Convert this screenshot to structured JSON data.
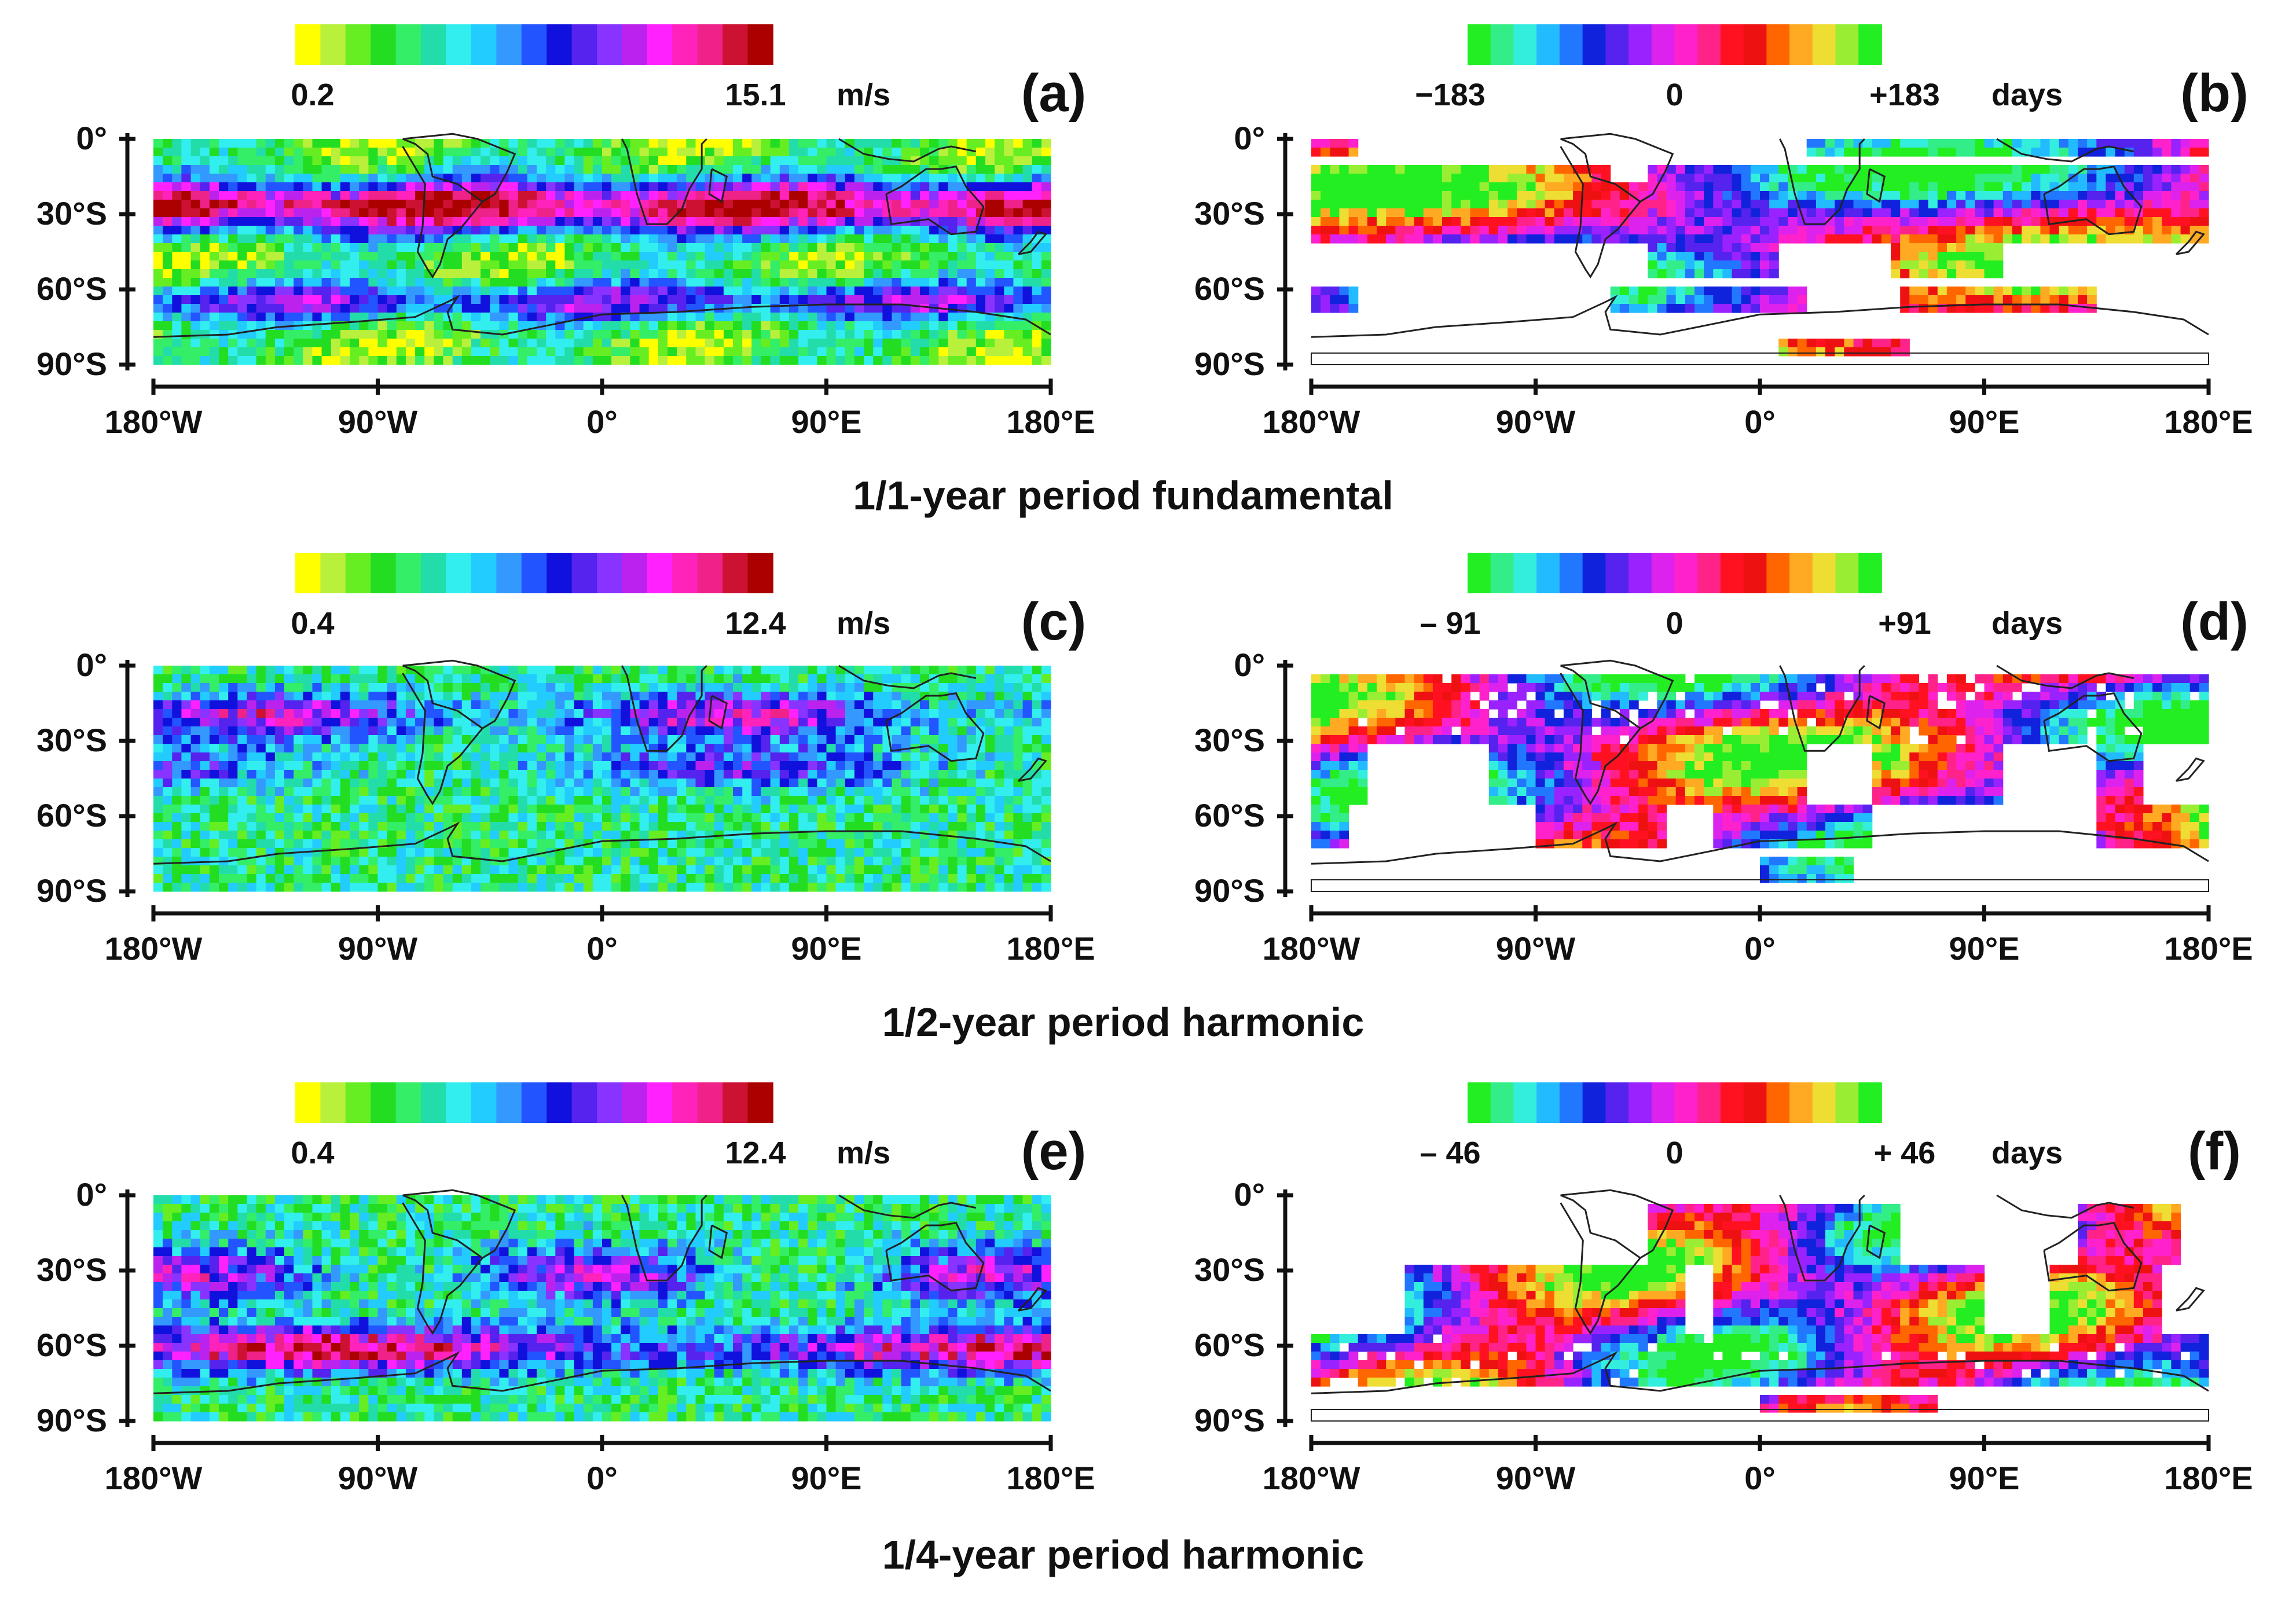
{
  "figure": {
    "title_rows": [
      "1/1-year period  fundamental",
      "1/2-year period  harmonic",
      "1/4-year period  harmonic"
    ]
  },
  "colors": {
    "amplitude_scale": [
      "#ffff00",
      "#b8f03c",
      "#66ee22",
      "#22dd22",
      "#33ee66",
      "#22ddaa",
      "#33eeee",
      "#22ccff",
      "#3399ff",
      "#2255ff",
      "#1111dd",
      "#5522ee",
      "#8833ff",
      "#bb22ee",
      "#ff22ff",
      "#ff22bb",
      "#ee2288",
      "#cc1133",
      "#aa0000"
    ],
    "phase_scale": [
      "#22ee22",
      "#33ee88",
      "#33eedd",
      "#22bbff",
      "#2277ff",
      "#1122dd",
      "#5522ee",
      "#9922ff",
      "#dd22ee",
      "#ff22cc",
      "#ff2288",
      "#ff1122",
      "#ee1111",
      "#ff6600",
      "#ffaa22",
      "#eedd33",
      "#99ee33",
      "#22ee22"
    ],
    "axis": "#111111",
    "coastline": "#222222"
  },
  "chart_data": [
    {
      "panel": "(a)",
      "type": "heatmap",
      "quantity": "amplitude",
      "colorbar": {
        "min_label": "0.2",
        "max_label": "15.1",
        "unit": "m/s",
        "min": 0.2,
        "max": 15.1
      },
      "x_ticks": [
        "180°W",
        "90°W",
        "0°",
        "90°E",
        "180°E"
      ],
      "x_values": [
        -180,
        -90,
        0,
        90,
        180
      ],
      "y_ticks": [
        "0°",
        "30°S",
        "60°S",
        "90°S"
      ],
      "y_values": [
        0,
        -30,
        -60,
        -90
      ],
      "xlim": [
        -180,
        180
      ],
      "ylim": [
        -90,
        0
      ]
    },
    {
      "panel": "(b)",
      "type": "heatmap",
      "quantity": "phase",
      "colorbar": {
        "min_label": "−183",
        "mid_label": "0",
        "max_label": "+183",
        "unit": "days",
        "min": -183,
        "max": 183
      },
      "x_ticks": [
        "180°W",
        "90°W",
        "0°",
        "90°E",
        "180°E"
      ],
      "x_values": [
        -180,
        -90,
        0,
        90,
        180
      ],
      "y_ticks": [
        "0°",
        "30°S",
        "60°S",
        "90°S"
      ],
      "y_values": [
        0,
        -30,
        -60,
        -90
      ],
      "xlim": [
        -180,
        180
      ],
      "ylim": [
        -90,
        0
      ]
    },
    {
      "panel": "(c)",
      "type": "heatmap",
      "quantity": "amplitude",
      "colorbar": {
        "min_label": "0.4",
        "max_label": "12.4",
        "unit": "m/s",
        "min": 0.4,
        "max": 12.4
      },
      "x_ticks": [
        "180°W",
        "90°W",
        "0°",
        "90°E",
        "180°E"
      ],
      "x_values": [
        -180,
        -90,
        0,
        90,
        180
      ],
      "y_ticks": [
        "0°",
        "30°S",
        "60°S",
        "90°S"
      ],
      "y_values": [
        0,
        -30,
        -60,
        -90
      ],
      "xlim": [
        -180,
        180
      ],
      "ylim": [
        -90,
        0
      ]
    },
    {
      "panel": "(d)",
      "type": "heatmap",
      "quantity": "phase",
      "colorbar": {
        "min_label": "– 91",
        "mid_label": "0",
        "max_label": "+91",
        "unit": "days",
        "min": -91,
        "max": 91
      },
      "x_ticks": [
        "180°W",
        "90°W",
        "0°",
        "90°E",
        "180°E"
      ],
      "x_values": [
        -180,
        -90,
        0,
        90,
        180
      ],
      "y_ticks": [
        "0°",
        "30°S",
        "60°S",
        "90°S"
      ],
      "y_values": [
        0,
        -30,
        -60,
        -90
      ],
      "xlim": [
        -180,
        180
      ],
      "ylim": [
        -90,
        0
      ]
    },
    {
      "panel": "(e)",
      "type": "heatmap",
      "quantity": "amplitude",
      "colorbar": {
        "min_label": "0.4",
        "max_label": "12.4",
        "unit": "m/s",
        "min": 0.4,
        "max": 12.4
      },
      "x_ticks": [
        "180°W",
        "90°W",
        "0°",
        "90°E",
        "180°E"
      ],
      "x_values": [
        -180,
        -90,
        0,
        90,
        180
      ],
      "y_ticks": [
        "0°",
        "30°S",
        "60°S",
        "90°S"
      ],
      "y_values": [
        0,
        -30,
        -60,
        -90
      ],
      "xlim": [
        -180,
        180
      ],
      "ylim": [
        -90,
        0
      ]
    },
    {
      "panel": "(f)",
      "type": "heatmap",
      "quantity": "phase",
      "colorbar": {
        "min_label": "– 46",
        "mid_label": "0",
        "max_label": "+ 46",
        "unit": "days",
        "min": -46,
        "max": 46
      },
      "x_ticks": [
        "180°W",
        "90°W",
        "0°",
        "90°E",
        "180°E"
      ],
      "x_values": [
        -180,
        -90,
        0,
        90,
        180
      ],
      "y_ticks": [
        "0°",
        "30°S",
        "60°S",
        "90°S"
      ],
      "y_values": [
        0,
        -30,
        -60,
        -90
      ],
      "xlim": [
        -180,
        180
      ],
      "ylim": [
        -90,
        0
      ]
    }
  ]
}
